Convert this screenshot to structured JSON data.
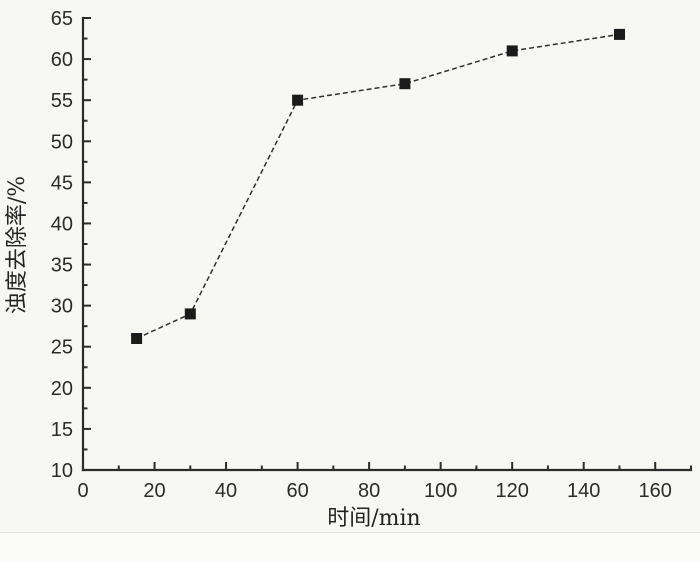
{
  "figure": {
    "background_color": "#f7f7f4",
    "ink_color": "#2b2b2b"
  },
  "chart_data": {
    "type": "line",
    "title": "",
    "xlabel": "时间/min",
    "ylabel": "浊度去除率/%",
    "x": [
      15,
      30,
      60,
      90,
      120,
      150
    ],
    "y": [
      26,
      29,
      55,
      57,
      61,
      63
    ],
    "xlim": [
      0,
      170
    ],
    "ylim": [
      10,
      65
    ],
    "xticks": [
      0,
      20,
      40,
      60,
      80,
      100,
      120,
      140,
      160
    ],
    "yticks": [
      10,
      15,
      20,
      25,
      30,
      35,
      40,
      45,
      50,
      55,
      60,
      65
    ],
    "x_minor_step": 10,
    "y_minor_step": 2.5,
    "grid": false,
    "legend": "none",
    "line_style": "dashed",
    "line_color": "#2f2f2f",
    "marker": "filled-square",
    "marker_color": "#1b1b1b"
  }
}
